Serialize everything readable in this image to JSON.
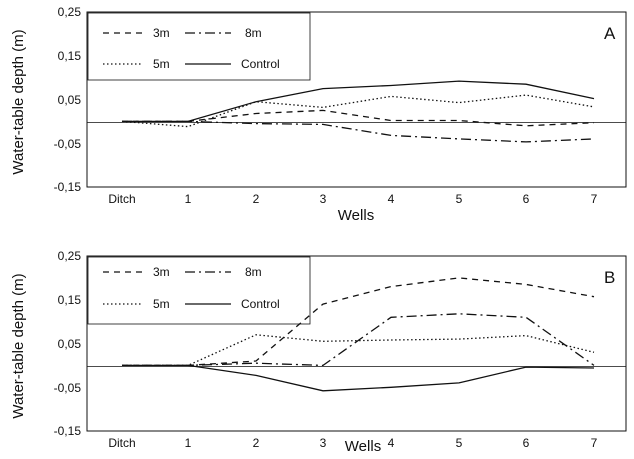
{
  "chart_data": [
    {
      "type": "line",
      "panel_label": "A",
      "xlabel": "Wells",
      "ylabel": "Water-table depth (m)",
      "categories": [
        "Ditch",
        "1",
        "2",
        "3",
        "4",
        "5",
        "6",
        "7"
      ],
      "ytick_labels": [
        "0,25",
        "0,15",
        "0,05",
        "-0,05",
        "-0,15"
      ],
      "yticks": [
        0.25,
        0.15,
        0.05,
        -0.05,
        -0.15
      ],
      "ylim": [
        -0.15,
        0.25
      ],
      "zero_line": true,
      "grid": false,
      "legend_position": "top-left",
      "series": [
        {
          "name": "3m",
          "style": "dashed",
          "values": [
            0,
            0,
            0.018,
            0.025,
            0.002,
            0.002,
            -0.01,
            -0.003
          ]
        },
        {
          "name": "8m",
          "style": "dashdot",
          "values": [
            0,
            0,
            -0.005,
            -0.007,
            -0.032,
            -0.04,
            -0.047,
            -0.04
          ]
        },
        {
          "name": "5m",
          "style": "dotted",
          "values": [
            0,
            -0.012,
            0.045,
            0.032,
            0.057,
            0.043,
            0.06,
            0.033
          ]
        },
        {
          "name": "Control",
          "style": "solid",
          "values": [
            0,
            0,
            0.045,
            0.075,
            0.082,
            0.092,
            0.085,
            0.052
          ]
        }
      ]
    },
    {
      "type": "line",
      "panel_label": "B",
      "xlabel": "Wells",
      "ylabel": "Water-table depth (m)",
      "categories": [
        "Ditch",
        "1",
        "2",
        "3",
        "4",
        "5",
        "6",
        "7"
      ],
      "ytick_labels": [
        "0,25",
        "0,15",
        "0,05",
        "-0,05",
        "-0,15"
      ],
      "yticks": [
        0.25,
        0.15,
        0.05,
        -0.05,
        -0.15
      ],
      "ylim": [
        -0.15,
        0.25
      ],
      "zero_line": true,
      "grid": false,
      "legend_position": "top-left",
      "series": [
        {
          "name": "3m",
          "style": "dashed",
          "values": [
            0,
            0,
            0.01,
            0.14,
            0.18,
            0.2,
            0.185,
            0.157
          ]
        },
        {
          "name": "8m",
          "style": "dashdot",
          "values": [
            0,
            0,
            0.005,
            0.0,
            0.11,
            0.118,
            0.11,
            0.0
          ]
        },
        {
          "name": "5m",
          "style": "dotted",
          "values": [
            0,
            0,
            0.07,
            0.055,
            0.058,
            0.06,
            0.068,
            0.03
          ]
        },
        {
          "name": "Control",
          "style": "solid",
          "values": [
            0,
            0,
            -0.023,
            -0.058,
            -0.05,
            -0.04,
            -0.004,
            -0.006
          ]
        }
      ]
    }
  ]
}
